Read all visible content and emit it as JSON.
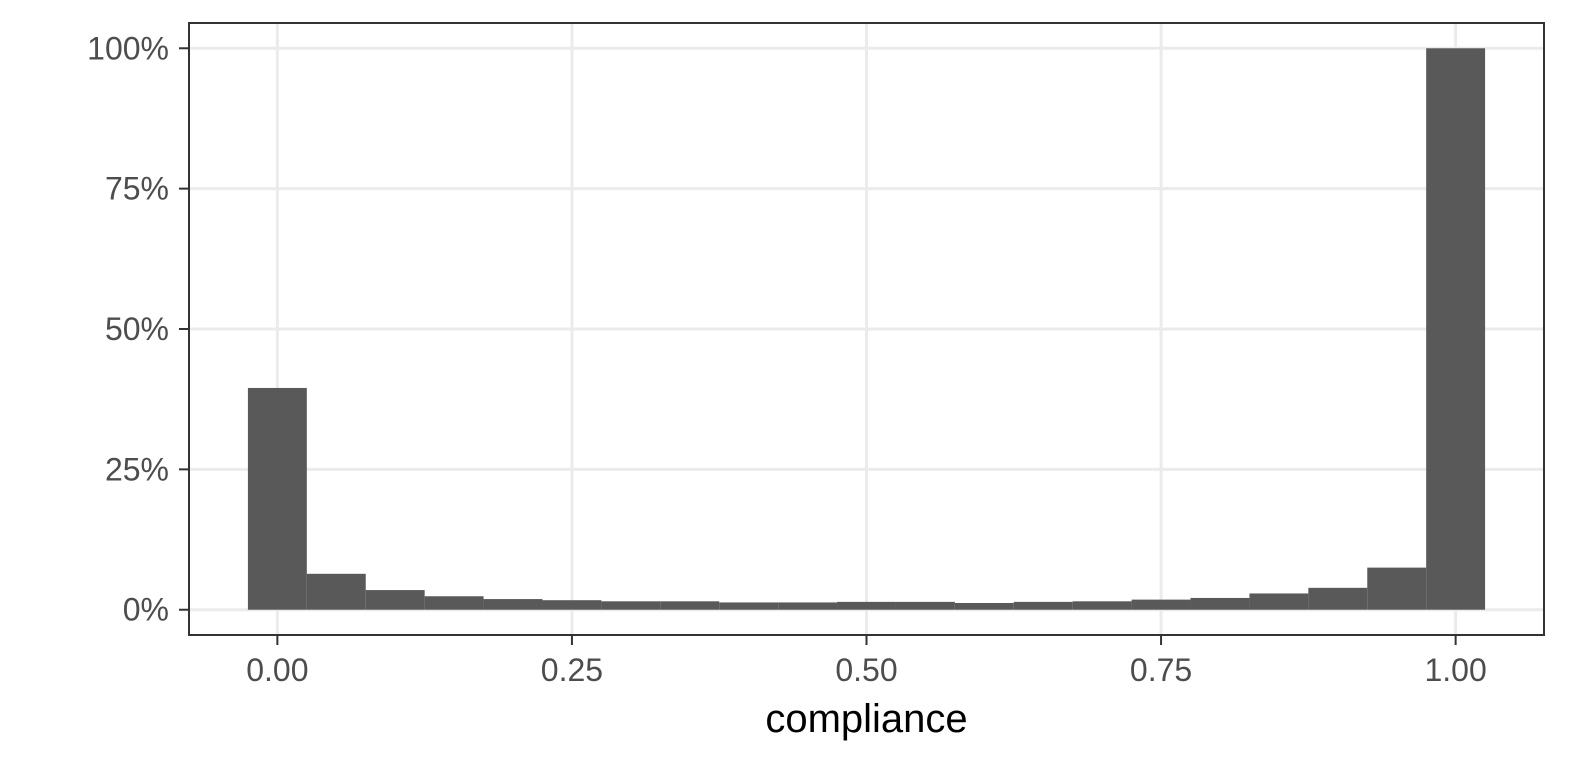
{
  "chart_data": {
    "type": "bar",
    "subtype": "histogram",
    "title": "",
    "xlabel": "compliance",
    "ylabel": "",
    "xlim": [
      -0.075,
      1.075
    ],
    "ylim": [
      -0.045,
      1.045
    ],
    "bin_width": 0.05,
    "bins": [
      {
        "x": 0.0,
        "value": 0.395
      },
      {
        "x": 0.05,
        "value": 0.064
      },
      {
        "x": 0.1,
        "value": 0.035
      },
      {
        "x": 0.15,
        "value": 0.024
      },
      {
        "x": 0.2,
        "value": 0.019
      },
      {
        "x": 0.25,
        "value": 0.017
      },
      {
        "x": 0.3,
        "value": 0.015
      },
      {
        "x": 0.35,
        "value": 0.015
      },
      {
        "x": 0.4,
        "value": 0.013
      },
      {
        "x": 0.45,
        "value": 0.013
      },
      {
        "x": 0.5,
        "value": 0.014
      },
      {
        "x": 0.55,
        "value": 0.014
      },
      {
        "x": 0.6,
        "value": 0.012
      },
      {
        "x": 0.65,
        "value": 0.014
      },
      {
        "x": 0.7,
        "value": 0.015
      },
      {
        "x": 0.75,
        "value": 0.018
      },
      {
        "x": 0.8,
        "value": 0.021
      },
      {
        "x": 0.85,
        "value": 0.029
      },
      {
        "x": 0.9,
        "value": 0.039
      },
      {
        "x": 0.95,
        "value": 0.075
      },
      {
        "x": 1.0,
        "value": 1.0
      }
    ],
    "x_ticks": [
      {
        "value": 0.0,
        "label": "0.00"
      },
      {
        "value": 0.25,
        "label": "0.25"
      },
      {
        "value": 0.5,
        "label": "0.50"
      },
      {
        "value": 0.75,
        "label": "0.75"
      },
      {
        "value": 1.0,
        "label": "1.00"
      }
    ],
    "y_ticks": [
      {
        "value": 0.0,
        "label": "0%"
      },
      {
        "value": 0.25,
        "label": "25%"
      },
      {
        "value": 0.5,
        "label": "50%"
      },
      {
        "value": 0.75,
        "label": "75%"
      },
      {
        "value": 1.0,
        "label": "100%"
      }
    ],
    "grid": true,
    "legend": "none",
    "colors": {
      "bar": "#595959",
      "grid": "#ebebeb",
      "panel_border": "#333333",
      "tick_label": "#4d4d4d",
      "axis_title": "#000000"
    }
  }
}
